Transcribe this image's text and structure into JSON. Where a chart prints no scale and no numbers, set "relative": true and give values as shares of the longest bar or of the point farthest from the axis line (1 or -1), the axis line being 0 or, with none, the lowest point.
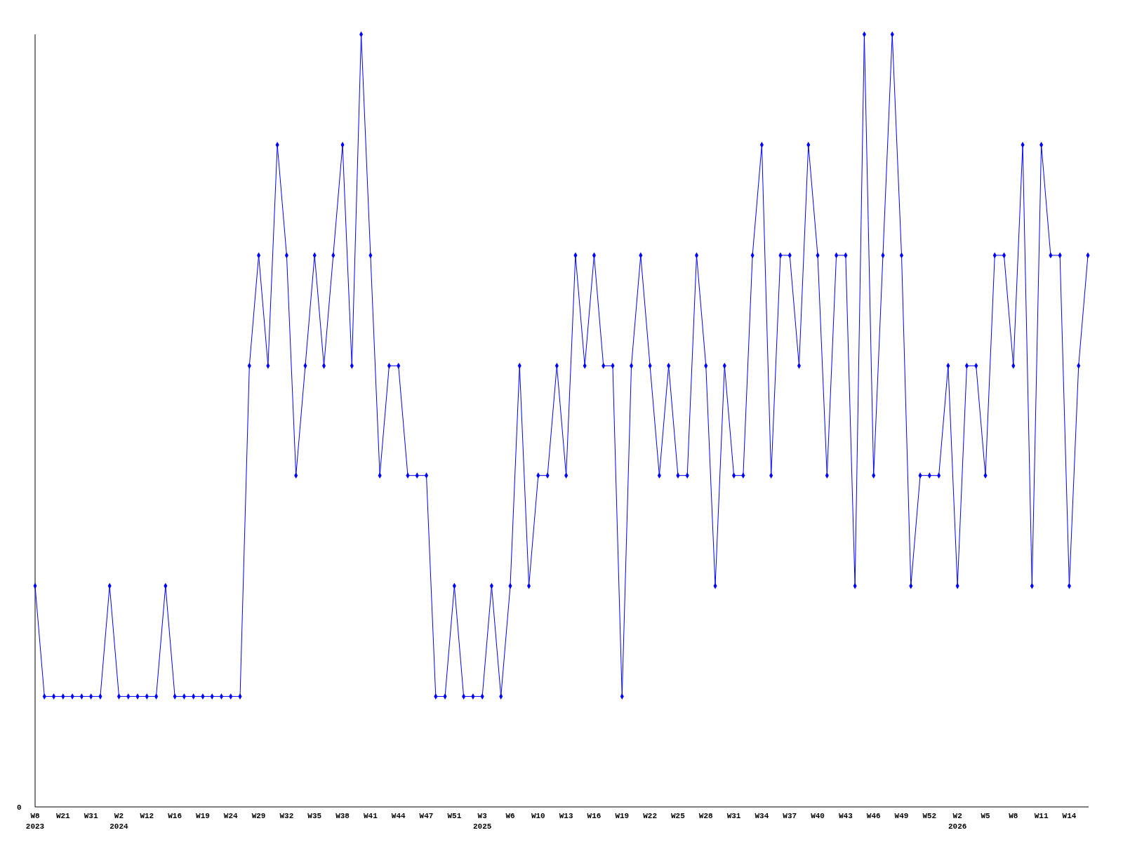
{
  "chart_data": {
    "type": "line",
    "relative": true,
    "marker": "diamond",
    "line_style": "solid",
    "grid": false,
    "legend": false,
    "annotations": [
      "0"
    ],
    "categories": [
      "W8 2023",
      null,
      null,
      "W21",
      null,
      null,
      "W31",
      null,
      null,
      "W2 2024",
      null,
      null,
      "W12",
      null,
      null,
      "W16",
      null,
      null,
      "W19",
      null,
      null,
      "W24",
      null,
      null,
      "W29",
      null,
      null,
      "W32",
      null,
      null,
      "W35",
      null,
      null,
      "W38",
      null,
      null,
      "W41",
      null,
      null,
      "W44",
      null,
      null,
      "W47",
      null,
      null,
      "W51",
      null,
      null,
      "W3 2025",
      null,
      null,
      "W6",
      null,
      null,
      "W10",
      null,
      null,
      "W13",
      null,
      null,
      "W16",
      null,
      null,
      "W19",
      null,
      null,
      "W22",
      null,
      null,
      "W25",
      null,
      null,
      "W28",
      null,
      null,
      "W31",
      null,
      null,
      "W34",
      null,
      null,
      "W37",
      null,
      null,
      "W40",
      null,
      null,
      "W43",
      null,
      null,
      "W46",
      null,
      null,
      "W49",
      null,
      null,
      "W52",
      null,
      null,
      "W2 2026",
      null,
      null,
      "W5",
      null,
      null,
      "W8",
      null,
      null,
      "W11",
      null,
      null,
      "W14",
      null,
      null
    ],
    "series": [
      {
        "color": "#0000ff",
        "values": [
          0.286,
          0.143,
          0.143,
          0.143,
          0.143,
          0.143,
          0.143,
          0.143,
          0.286,
          0.143,
          0.143,
          0.143,
          0.143,
          0.143,
          0.286,
          0.143,
          0.143,
          0.143,
          0.143,
          0.143,
          0.143,
          0.143,
          0.143,
          0.571,
          0.714,
          0.571,
          0.857,
          0.714,
          0.429,
          0.571,
          0.714,
          0.571,
          0.714,
          0.857,
          0.571,
          1,
          0.714,
          0.429,
          0.571,
          0.571,
          0.429,
          0.429,
          0.429,
          0.143,
          0.143,
          0.286,
          0.143,
          0.143,
          0.143,
          0.286,
          0.143,
          0.286,
          0.571,
          0.286,
          0.429,
          0.429,
          0.571,
          0.429,
          0.714,
          0.571,
          0.714,
          0.571,
          0.571,
          0.143,
          0.571,
          0.714,
          0.571,
          0.429,
          0.571,
          0.429,
          0.429,
          0.714,
          0.571,
          0.286,
          0.571,
          0.429,
          0.429,
          0.714,
          0.857,
          0.429,
          0.714,
          0.714,
          0.571,
          0.857,
          0.714,
          0.429,
          0.714,
          0.714,
          0.286,
          1,
          0.429,
          0.714,
          1,
          0.714,
          0.286,
          0.429,
          0.429,
          0.429,
          0.571,
          0.286,
          0.571,
          0.571,
          0.429,
          0.714,
          0.714,
          0.571,
          0.857,
          0.286,
          0.857,
          0.714,
          0.714,
          0.286,
          0.571,
          0.714
        ]
      }
    ]
  }
}
